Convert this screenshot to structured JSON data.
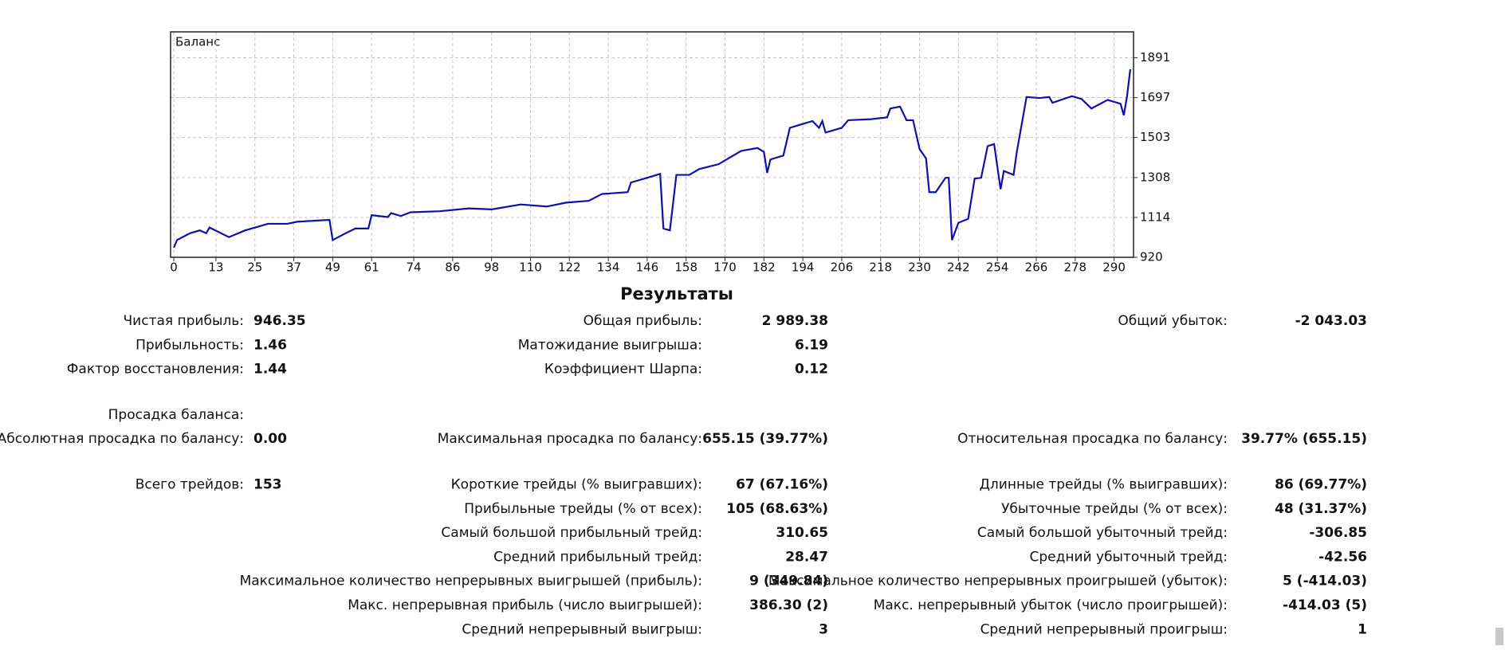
{
  "chart_data": {
    "type": "line",
    "title": "Баланс",
    "x": [
      0,
      1,
      5,
      8,
      10,
      11,
      17,
      22,
      26,
      29,
      35,
      38,
      48,
      49,
      53,
      56,
      60,
      61,
      66,
      67,
      70,
      73,
      82,
      91,
      98,
      107,
      115,
      121,
      128,
      132,
      140,
      141,
      146,
      150,
      151,
      153,
      155,
      159,
      162,
      168,
      171,
      175,
      180,
      182,
      183,
      184,
      188,
      190,
      194,
      197,
      199,
      200,
      201,
      206,
      208,
      215,
      220,
      221,
      224,
      226,
      228,
      230,
      232,
      233,
      235,
      238,
      239,
      240,
      242,
      245,
      247,
      249,
      251,
      253,
      255,
      256,
      259,
      260,
      263,
      267,
      270,
      271,
      277,
      280,
      283,
      288,
      292,
      293,
      294,
      295
    ],
    "series": [
      {
        "color": "#1010a8",
        "values": [
          967,
          1004,
          1037,
          1051,
          1037,
          1065,
          1018,
          1051,
          1069,
          1083,
          1083,
          1093,
          1102,
          1004,
          1037,
          1060,
          1060,
          1125,
          1116,
          1135,
          1121,
          1139,
          1144,
          1158,
          1153,
          1177,
          1167,
          1186,
          1195,
          1228,
          1237,
          1284,
          1307,
          1326,
          1060,
          1051,
          1321,
          1321,
          1349,
          1373,
          1401,
          1438,
          1452,
          1433,
          1331,
          1396,
          1415,
          1550,
          1569,
          1583,
          1550,
          1583,
          1527,
          1550,
          1587,
          1592,
          1601,
          1644,
          1653,
          1587,
          1587,
          1447,
          1401,
          1237,
          1237,
          1307,
          1307,
          1004,
          1088,
          1107,
          1303,
          1307,
          1461,
          1471,
          1251,
          1340,
          1321,
          1433,
          1700,
          1695,
          1700,
          1672,
          1704,
          1690,
          1644,
          1686,
          1667,
          1611,
          1704,
          1835
        ]
      }
    ],
    "xlim": [
      -1,
      296
    ],
    "ylim": [
      920,
      2017
    ],
    "xticks": [
      0,
      13,
      25,
      37,
      49,
      61,
      74,
      86,
      98,
      110,
      122,
      134,
      146,
      158,
      170,
      182,
      194,
      206,
      218,
      230,
      242,
      254,
      266,
      278,
      290
    ],
    "yticks": [
      920,
      1114,
      1308,
      1503,
      1697,
      1891
    ],
    "grid": true
  },
  "results": {
    "title": "Результаты",
    "groups": [
      [
        [
          [
            "Чистая прибыль:",
            "946.35"
          ],
          [
            "Общая прибыль:",
            "2 989.38"
          ],
          [
            "Общий убыток:",
            "-2 043.03"
          ]
        ],
        [
          [
            "Прибыльность:",
            "1.46"
          ],
          [
            "Матожидание выигрыша:",
            "6.19"
          ],
          null
        ],
        [
          [
            "Фактор восстановления:",
            "1.44"
          ],
          [
            "Коэффициент Шарпа:",
            "0.12"
          ],
          null
        ]
      ],
      [
        [
          [
            "Просадка баланса:"
          ],
          null,
          null
        ],
        [
          [
            "Абсолютная просадка по балансу:",
            "0.00"
          ],
          [
            "Максимальная просадка по балансу:",
            "655.15 (39.77%)"
          ],
          [
            "Относительная просадка по балансу:",
            "39.77% (655.15)"
          ]
        ]
      ],
      [
        [
          [
            "Всего трейдов:",
            "153"
          ],
          [
            "Короткие трейды (% выигравших):",
            "67 (67.16%)"
          ],
          [
            "Длинные трейды (% выигравших):",
            "86 (69.77%)"
          ]
        ],
        [
          null,
          [
            "Прибыльные трейды (% от всех):",
            "105 (68.63%)"
          ],
          [
            "Убыточные трейды (% от всех):",
            "48 (31.37%)"
          ]
        ],
        [
          null,
          [
            "Самый большой прибыльный трейд:",
            "310.65"
          ],
          [
            "Самый большой убыточный трейд:",
            "-306.85"
          ]
        ],
        [
          null,
          [
            "Средний прибыльный трейд:",
            "28.47"
          ],
          [
            "Средний убыточный трейд:",
            "-42.56"
          ]
        ],
        [
          null,
          [
            "Максимальное количество непрерывных выигрышей (прибыль):",
            "9 (349.84)"
          ],
          [
            "Максимальное количество непрерывных проигрышей (убыток):",
            "5 (-414.03)"
          ]
        ],
        [
          null,
          [
            "Макс. непрерывная прибыль (число выигрышей):",
            "386.30 (2)"
          ],
          [
            "Макс. непрерывный убыток (число проигрышей):",
            "-414.03 (5)"
          ]
        ],
        [
          null,
          [
            "Средний непрерывный выигрыш:",
            "3"
          ],
          [
            "Средний непрерывный проигрыш:",
            "1"
          ]
        ]
      ]
    ]
  }
}
